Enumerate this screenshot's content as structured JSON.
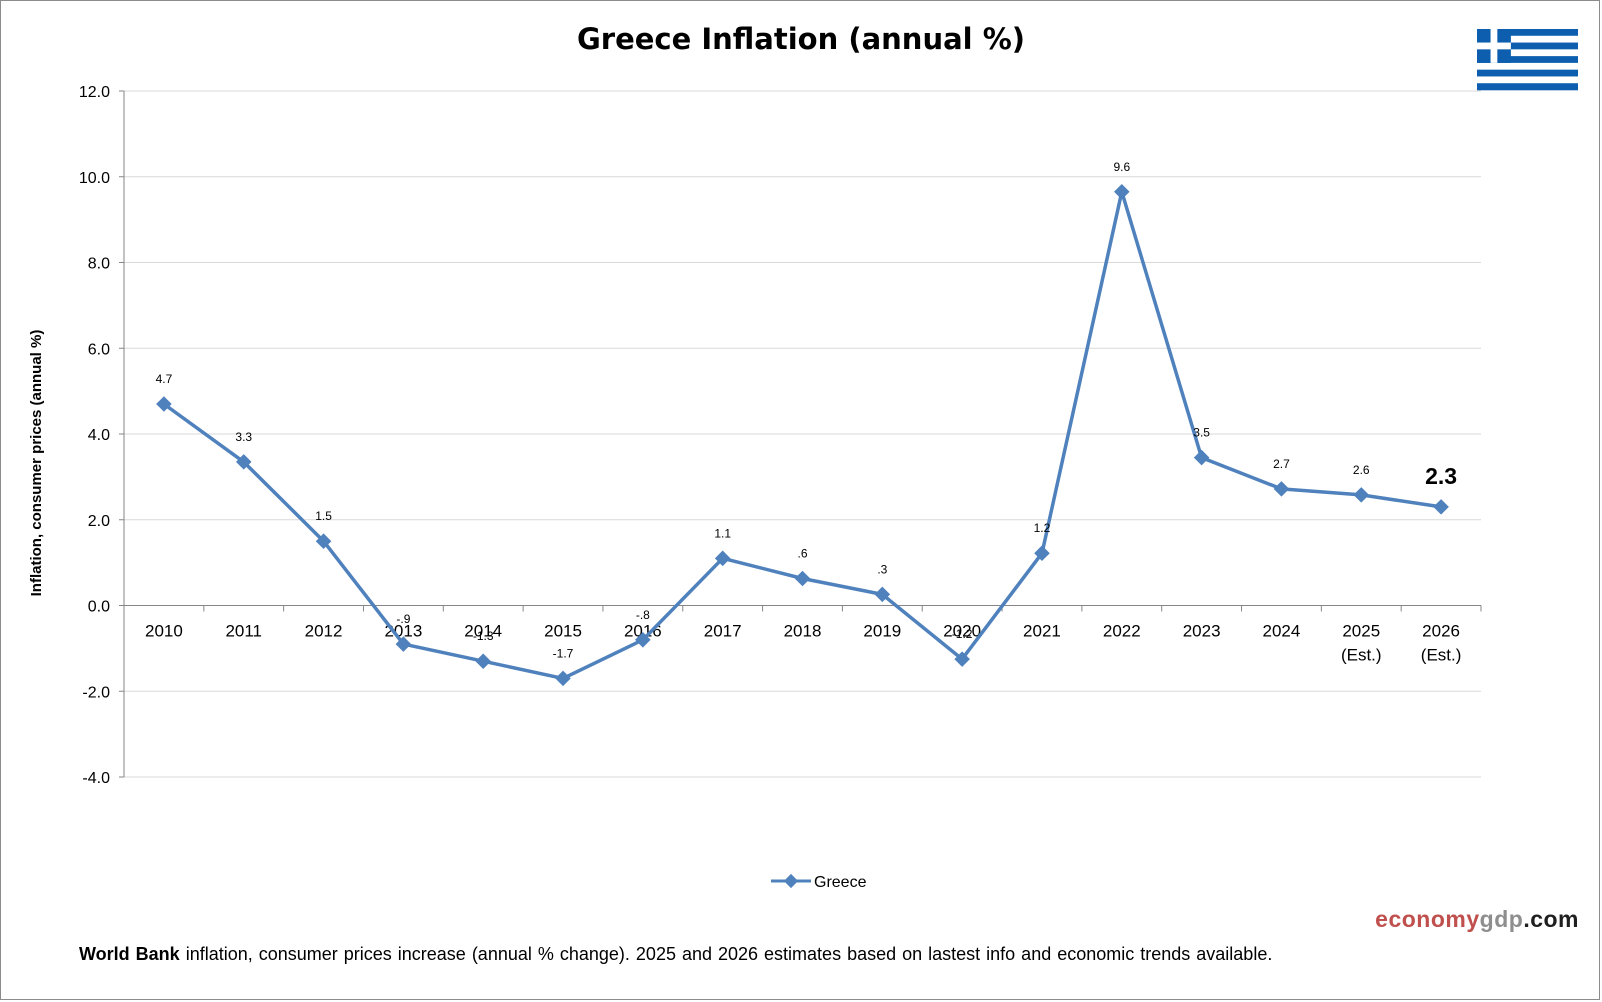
{
  "colors": {
    "series": "#4f81bd",
    "grid": "#d9d9d9",
    "axis": "#868686",
    "flag_blue": "#0d5eaf",
    "flag_white": "#ffffff"
  },
  "logo": {
    "name": "greek-flag-icon"
  },
  "branding": {
    "part1": "economy",
    "part2": "gdp",
    "part3": ".com"
  },
  "footnote": {
    "bold": "World Bank",
    "text": " inflation, consumer prices increase (annual % change).  2025 and 2026 estimates based on lastest info and economic trends available."
  },
  "chart_data": {
    "type": "line",
    "title": "Greece Inflation (annual %)",
    "ylabel": "Inflation, consumer prices (annual %)",
    "xlabel": "",
    "ylim": [
      -4,
      12
    ],
    "yticks": [
      "12.0",
      "10.0",
      "8.0",
      "6.0",
      "4.0",
      "2.0",
      "0.0",
      "-2.0",
      "-4.0"
    ],
    "grid": true,
    "legend_position": "bottom",
    "categories": [
      [
        "2010"
      ],
      [
        "2011"
      ],
      [
        "2012"
      ],
      [
        "2013"
      ],
      [
        "2014"
      ],
      [
        "2015"
      ],
      [
        "2016"
      ],
      [
        "2017"
      ],
      [
        "2018"
      ],
      [
        "2019"
      ],
      [
        "2020"
      ],
      [
        "2021"
      ],
      [
        "2022"
      ],
      [
        "2023"
      ],
      [
        "2024"
      ],
      [
        "2025",
        "(Est.)"
      ],
      [
        "2026",
        "(Est.)"
      ]
    ],
    "series": [
      {
        "name": "Greece",
        "values": [
          4.7,
          3.35,
          1.5,
          -0.9,
          -1.3,
          -1.7,
          -0.8,
          1.1,
          0.63,
          0.26,
          -1.25,
          1.22,
          9.65,
          3.45,
          2.72,
          2.58,
          2.3
        ],
        "labels": [
          "4.7",
          "3.3",
          "1.5",
          "-.9",
          "-1.3",
          "-1.7",
          "-.8",
          "1.1",
          ".6",
          ".3",
          "-1.2",
          "1.2",
          "9.6",
          "3.5",
          "2.7",
          "2.6",
          "2.3"
        ]
      }
    ]
  }
}
